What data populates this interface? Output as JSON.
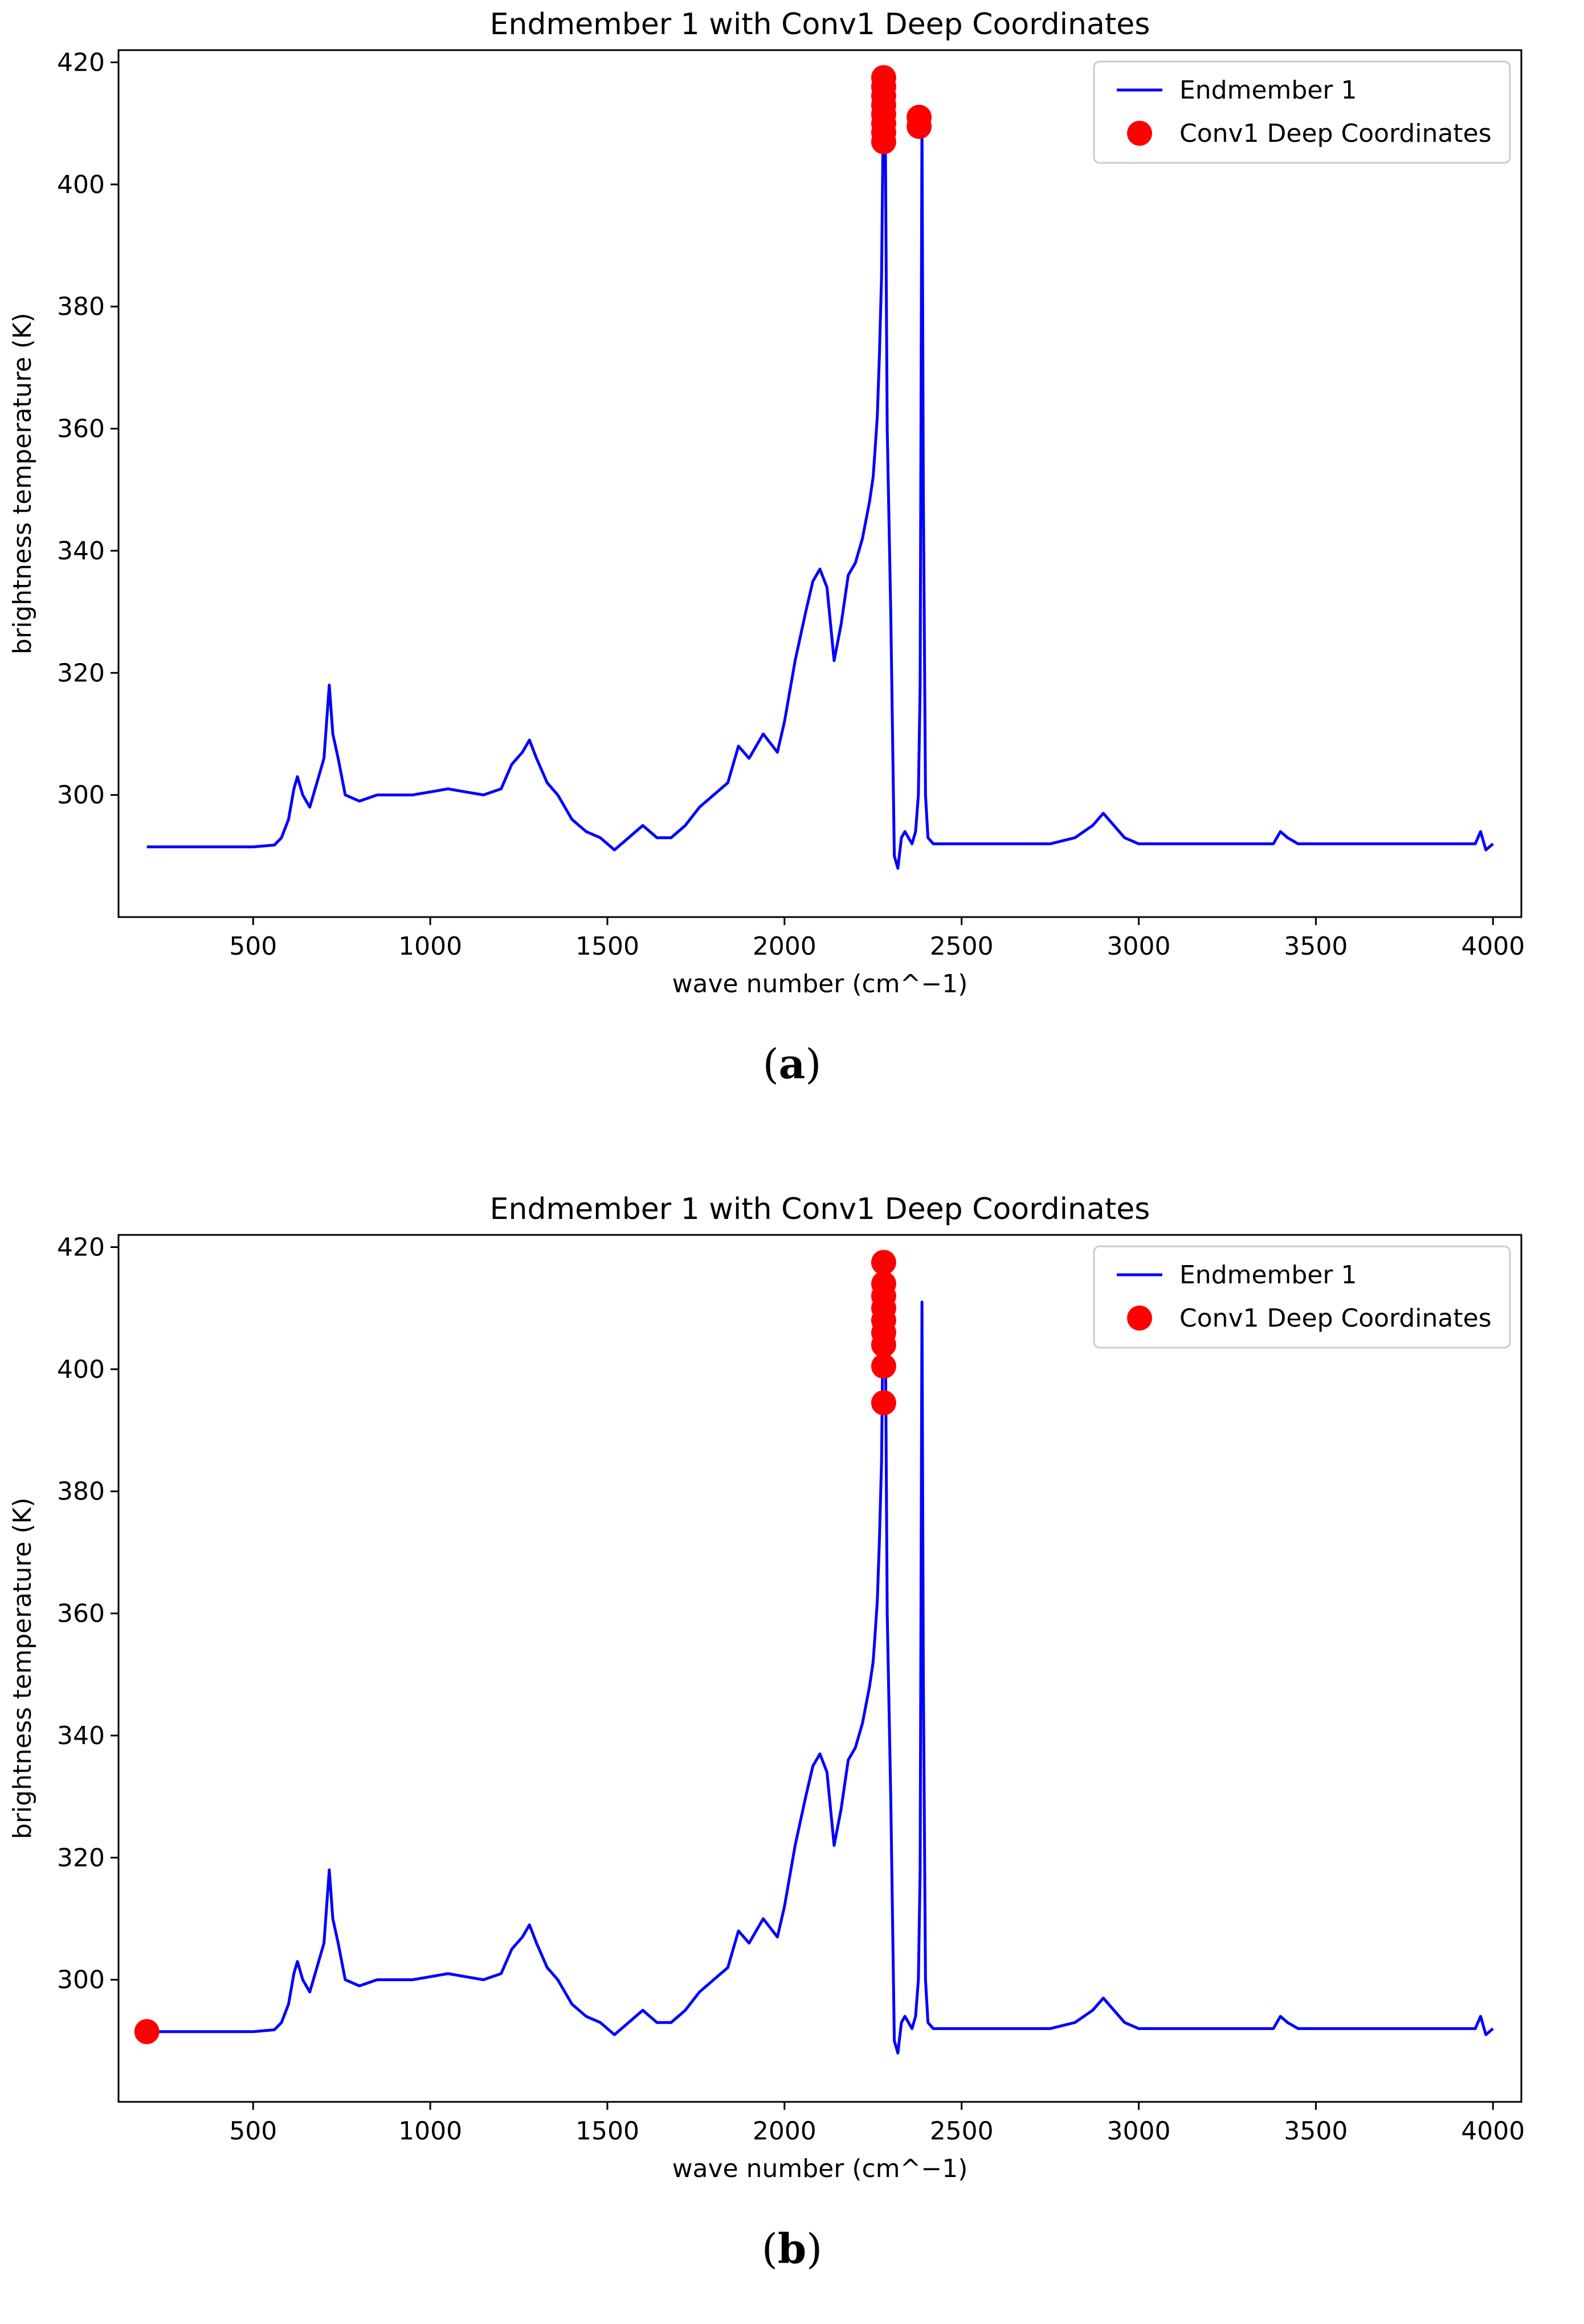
{
  "chart_data": [
    {
      "type": "line",
      "panel_label": "a",
      "title": "Endmember 1 with Conv1 Deep Coordinates",
      "xlabel": "wave number (cm^−1)",
      "ylabel": "brightness temperature (K)",
      "xlim": [
        120,
        4080
      ],
      "ylim": [
        280,
        422
      ],
      "xticks": [
        500,
        1000,
        1500,
        2000,
        2500,
        3000,
        3500,
        4000
      ],
      "yticks": [
        300,
        320,
        340,
        360,
        380,
        400,
        420
      ],
      "legend_position": "upper right",
      "series": [
        {
          "name": "Endmember 1",
          "kind": "line",
          "color": "#0000ff",
          "x": [
            200,
            300,
            400,
            500,
            560,
            580,
            600,
            615,
            625,
            640,
            660,
            680,
            700,
            715,
            725,
            740,
            760,
            800,
            850,
            900,
            950,
            1000,
            1050,
            1100,
            1150,
            1200,
            1230,
            1260,
            1280,
            1300,
            1330,
            1360,
            1400,
            1440,
            1480,
            1520,
            1560,
            1600,
            1640,
            1680,
            1720,
            1760,
            1800,
            1840,
            1870,
            1900,
            1940,
            1980,
            2000,
            2030,
            2060,
            2080,
            2100,
            2120,
            2140,
            2160,
            2180,
            2200,
            2220,
            2240,
            2250,
            2255,
            2262,
            2268,
            2274,
            2280,
            2285,
            2290,
            2300,
            2310,
            2320,
            2330,
            2340,
            2350,
            2360,
            2370,
            2378,
            2383,
            2388,
            2392,
            2398,
            2405,
            2420,
            2440,
            2480,
            2550,
            2650,
            2750,
            2820,
            2870,
            2900,
            2930,
            2960,
            3000,
            3050,
            3100,
            3200,
            3300,
            3380,
            3400,
            3420,
            3450,
            3500,
            3600,
            3700,
            3800,
            3900,
            3950,
            3965,
            3980,
            4000
          ],
          "y": [
            291.5,
            291.5,
            291.5,
            291.5,
            291.8,
            293,
            296,
            301,
            303,
            300,
            298,
            302,
            306,
            318,
            310,
            306,
            300,
            299,
            300,
            300,
            300,
            300.5,
            301,
            300.5,
            300,
            301,
            305,
            307,
            309,
            306,
            302,
            300,
            296,
            294,
            293,
            291,
            293,
            295,
            293,
            293,
            295,
            298,
            300,
            302,
            308,
            306,
            310,
            307,
            312,
            322,
            330,
            335,
            337,
            334,
            322,
            328,
            336,
            338,
            342,
            348,
            352,
            356,
            362,
            372,
            385,
            418,
            405,
            360,
            330,
            290,
            288,
            293,
            294,
            293,
            292,
            294,
            300,
            318,
            411,
            350,
            300,
            293,
            292,
            292,
            292,
            292,
            292,
            292,
            293,
            295,
            297,
            295,
            293,
            292,
            292,
            292,
            292,
            292,
            292,
            294,
            293,
            292,
            292,
            292,
            292,
            292,
            292,
            292,
            294,
            291,
            292
          ]
        },
        {
          "name": "Conv1 Deep Coordinates",
          "kind": "scatter",
          "color": "#ff0000",
          "x": [
            2280,
            2280,
            2280,
            2280,
            2280,
            2280,
            2280,
            2280,
            2380,
            2380
          ],
          "y": [
            417.5,
            416,
            414.5,
            413,
            411.5,
            410,
            408.5,
            407,
            411,
            409.5
          ]
        }
      ]
    },
    {
      "type": "line",
      "panel_label": "b",
      "title": "Endmember 1 with Conv1 Deep Coordinates",
      "xlabel": "wave number (cm^−1)",
      "ylabel": "brightness temperature (K)",
      "xlim": [
        120,
        4080
      ],
      "ylim": [
        280,
        422
      ],
      "xticks": [
        500,
        1000,
        1500,
        2000,
        2500,
        3000,
        3500,
        4000
      ],
      "yticks": [
        300,
        320,
        340,
        360,
        380,
        400,
        420
      ],
      "legend_position": "upper right",
      "series": [
        {
          "name": "Endmember 1",
          "kind": "line",
          "color": "#0000ff",
          "x": [
            200,
            300,
            400,
            500,
            560,
            580,
            600,
            615,
            625,
            640,
            660,
            680,
            700,
            715,
            725,
            740,
            760,
            800,
            850,
            900,
            950,
            1000,
            1050,
            1100,
            1150,
            1200,
            1230,
            1260,
            1280,
            1300,
            1330,
            1360,
            1400,
            1440,
            1480,
            1520,
            1560,
            1600,
            1640,
            1680,
            1720,
            1760,
            1800,
            1840,
            1870,
            1900,
            1940,
            1980,
            2000,
            2030,
            2060,
            2080,
            2100,
            2120,
            2140,
            2160,
            2180,
            2200,
            2220,
            2240,
            2250,
            2255,
            2262,
            2268,
            2274,
            2280,
            2285,
            2290,
            2300,
            2310,
            2320,
            2330,
            2340,
            2350,
            2360,
            2370,
            2378,
            2383,
            2388,
            2392,
            2398,
            2405,
            2420,
            2440,
            2480,
            2550,
            2650,
            2750,
            2820,
            2870,
            2900,
            2930,
            2960,
            3000,
            3050,
            3100,
            3200,
            3300,
            3380,
            3400,
            3420,
            3450,
            3500,
            3600,
            3700,
            3800,
            3900,
            3950,
            3965,
            3980,
            4000
          ],
          "y": [
            291.5,
            291.5,
            291.5,
            291.5,
            291.8,
            293,
            296,
            301,
            303,
            300,
            298,
            302,
            306,
            318,
            310,
            306,
            300,
            299,
            300,
            300,
            300,
            300.5,
            301,
            300.5,
            300,
            301,
            305,
            307,
            309,
            306,
            302,
            300,
            296,
            294,
            293,
            291,
            293,
            295,
            293,
            293,
            295,
            298,
            300,
            302,
            308,
            306,
            310,
            307,
            312,
            322,
            330,
            335,
            337,
            334,
            322,
            328,
            336,
            338,
            342,
            348,
            352,
            356,
            362,
            372,
            385,
            418,
            405,
            360,
            330,
            290,
            288,
            293,
            294,
            293,
            292,
            294,
            300,
            318,
            411,
            350,
            300,
            293,
            292,
            292,
            292,
            292,
            292,
            292,
            293,
            295,
            297,
            295,
            293,
            292,
            292,
            292,
            292,
            292,
            292,
            294,
            293,
            292,
            292,
            292,
            292,
            292,
            292,
            292,
            294,
            291,
            292
          ]
        },
        {
          "name": "Conv1 Deep Coordinates",
          "kind": "scatter",
          "color": "#ff0000",
          "x": [
            2280,
            2280,
            2280,
            2280,
            2280,
            2280,
            2280,
            2280,
            2280,
            200
          ],
          "y": [
            417.5,
            414,
            412,
            410,
            408,
            406,
            404,
            400.5,
            394.5,
            291.5
          ]
        }
      ]
    }
  ],
  "captions": [
    {
      "label": "a",
      "open": "(",
      "close": ")"
    },
    {
      "label": "b",
      "open": "(",
      "close": ")"
    }
  ]
}
